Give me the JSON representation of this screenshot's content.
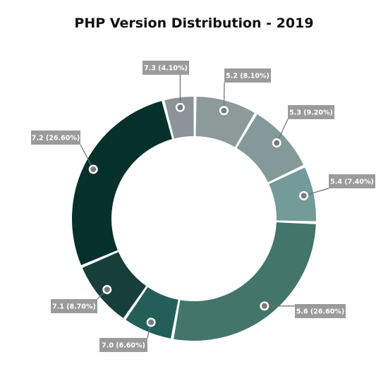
{
  "chart_data": {
    "type": "pie",
    "style": "donut",
    "title": "PHP Version Distribution - 2019",
    "slices": [
      {
        "name": "5.2",
        "value": 8.1,
        "label": "5.2 (8.10%)",
        "color": "#8c9b9a"
      },
      {
        "name": "5.3",
        "value": 9.2,
        "label": "5.3 (9.20%)",
        "color": "#84999a"
      },
      {
        "name": "5.4",
        "value": 7.4,
        "label": "5.4 (7.40%)",
        "color": "#729b9a"
      },
      {
        "name": "5.6",
        "value": 26.6,
        "label": "5.6 (26.60%)",
        "color": "#43756b"
      },
      {
        "name": "7.0",
        "value": 6.6,
        "label": "7.0 (6.60%)",
        "color": "#235e58"
      },
      {
        "name": "7.1",
        "value": 8.7,
        "label": "7.1 (8.70%)",
        "color": "#163f3b"
      },
      {
        "name": "7.2",
        "value": 26.6,
        "label": "7.2 (26.60%)",
        "color": "#06302b"
      },
      {
        "name": "7.3",
        "value": 4.1,
        "label": "7.3 (4.10%)",
        "color": "#8a9499"
      }
    ],
    "label_box_color": "#9b9b9b"
  }
}
